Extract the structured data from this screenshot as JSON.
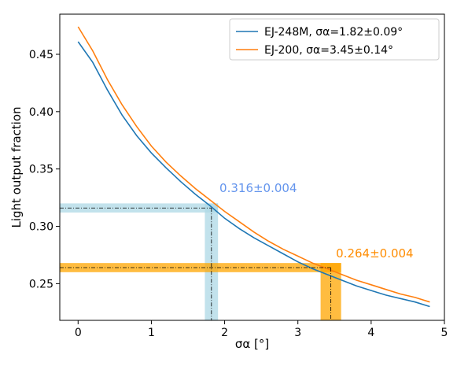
{
  "chart_data": {
    "type": "line",
    "xlabel": "σα [°]",
    "ylabel": "Light output fraction",
    "xlim": [
      -0.25,
      5.0
    ],
    "ylim": [
      0.218,
      0.485
    ],
    "x_ticks": [
      0,
      1,
      2,
      3,
      4,
      5
    ],
    "y_ticks": [
      0.25,
      0.3,
      0.35,
      0.4,
      0.45
    ],
    "x_tick_labels": [
      "0",
      "1",
      "2",
      "3",
      "4",
      "5"
    ],
    "y_tick_labels": [
      "0.25",
      "0.30",
      "0.35",
      "0.40",
      "0.45"
    ],
    "grid": false,
    "legend_position": "top-right",
    "series": [
      {
        "name": "EJ-248M, σα=1.82±0.09°",
        "color": "#1f77b4",
        "x": [
          0,
          0.2,
          0.4,
          0.6,
          0.8,
          1.0,
          1.2,
          1.4,
          1.6,
          1.8,
          2.0,
          2.2,
          2.4,
          2.6,
          2.8,
          3.0,
          3.2,
          3.4,
          3.6,
          3.8,
          4.0,
          4.2,
          4.4,
          4.6,
          4.8
        ],
        "y": [
          0.461,
          0.443,
          0.419,
          0.397,
          0.379,
          0.364,
          0.351,
          0.339,
          0.328,
          0.318,
          0.307,
          0.298,
          0.29,
          0.283,
          0.276,
          0.269,
          0.263,
          0.258,
          0.253,
          0.248,
          0.244,
          0.24,
          0.237,
          0.234,
          0.23
        ]
      },
      {
        "name": "EJ-200, σα=3.45±0.14°",
        "color": "#ff7f0e",
        "x": [
          0,
          0.2,
          0.4,
          0.6,
          0.8,
          1.0,
          1.2,
          1.4,
          1.6,
          1.8,
          2.0,
          2.2,
          2.4,
          2.6,
          2.8,
          3.0,
          3.2,
          3.4,
          3.6,
          3.8,
          4.0,
          4.2,
          4.4,
          4.6,
          4.8
        ],
        "y": [
          0.474,
          0.453,
          0.428,
          0.406,
          0.387,
          0.37,
          0.356,
          0.344,
          0.333,
          0.323,
          0.313,
          0.304,
          0.295,
          0.287,
          0.28,
          0.274,
          0.268,
          0.263,
          0.258,
          0.253,
          0.249,
          0.245,
          0.241,
          0.238,
          0.234
        ]
      }
    ],
    "bands": [
      {
        "color": "#add8e6",
        "x_center": 1.82,
        "x_lo": 1.73,
        "x_hi": 1.91,
        "y_center": 0.316,
        "y_lo": 0.312,
        "y_hi": 0.32,
        "label": "0.316±0.004",
        "label_color": "#6495ed",
        "label_pos": [
          1.93,
          0.33
        ]
      },
      {
        "color": "#ffa500",
        "x_center": 3.45,
        "x_lo": 3.31,
        "x_hi": 3.59,
        "y_center": 0.264,
        "y_lo": 0.26,
        "y_hi": 0.268,
        "label": "0.264±0.004",
        "label_color": "#ff8c00",
        "label_pos": [
          3.52,
          0.273
        ]
      }
    ]
  }
}
